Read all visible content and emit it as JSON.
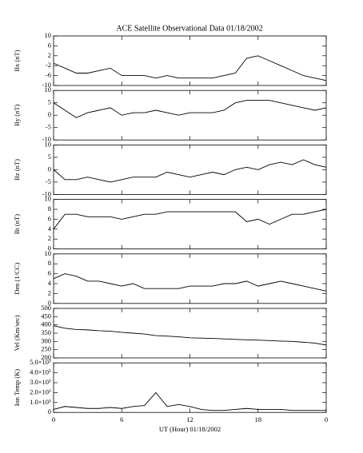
{
  "chart_data": [
    {
      "type": "line",
      "title": "ACE Satellite Observational Data   01/18/2002",
      "ylabel": "Bx (nT)",
      "x": [
        0,
        1,
        2,
        3,
        4,
        5,
        6,
        7,
        8,
        9,
        10,
        11,
        12,
        13,
        14,
        15,
        16,
        17,
        18,
        19,
        20,
        21,
        22,
        23,
        24
      ],
      "values": [
        -1,
        -3,
        -5,
        -5,
        -4,
        -3,
        -6,
        -6,
        -6,
        -7,
        -6,
        -7,
        -7,
        -7,
        -7,
        -6,
        -5,
        1,
        2,
        0,
        -2,
        -4,
        -6,
        -7,
        -8
      ],
      "ylim": [
        -10,
        10
      ],
      "yticks": [
        -10,
        -6,
        -2,
        2,
        6,
        10
      ],
      "color": "#000000"
    },
    {
      "type": "line",
      "ylabel": "By (nT)",
      "x": [
        0,
        1,
        2,
        3,
        4,
        5,
        6,
        7,
        8,
        9,
        10,
        11,
        12,
        13,
        14,
        15,
        16,
        17,
        18,
        19,
        20,
        21,
        22,
        23,
        24
      ],
      "values": [
        5,
        2,
        -1,
        1,
        2,
        3,
        0,
        1,
        1,
        2,
        1,
        0,
        1,
        1,
        1,
        2,
        5,
        6,
        6,
        6,
        5,
        4,
        3,
        2,
        3
      ],
      "ylim": [
        -10,
        10
      ],
      "yticks": [
        -10,
        -5,
        0,
        5,
        10
      ],
      "color": "#000000"
    },
    {
      "type": "line",
      "ylabel": "Bz (nT)",
      "x": [
        0,
        1,
        2,
        3,
        4,
        5,
        6,
        7,
        8,
        9,
        10,
        11,
        12,
        13,
        14,
        15,
        16,
        17,
        18,
        19,
        20,
        21,
        22,
        23,
        24
      ],
      "values": [
        0,
        -4,
        -4,
        -3,
        -4,
        -5,
        -4,
        -3,
        -3,
        -3,
        -1,
        -2,
        -3,
        -2,
        -1,
        -2,
        0,
        1,
        0,
        2,
        3,
        2,
        4,
        2,
        1
      ],
      "ylim": [
        -10,
        10
      ],
      "yticks": [
        -10,
        -5,
        0,
        5,
        10
      ],
      "color": "#000000"
    },
    {
      "type": "line",
      "ylabel": "Bt (nT)",
      "x": [
        0,
        1,
        2,
        3,
        4,
        5,
        6,
        7,
        8,
        9,
        10,
        11,
        12,
        13,
        14,
        15,
        16,
        17,
        18,
        19,
        20,
        21,
        22,
        23,
        24
      ],
      "values": [
        4,
        7,
        7,
        6.5,
        6.5,
        6.5,
        6,
        6.5,
        7,
        7,
        7.5,
        7.5,
        7.5,
        7.5,
        7.5,
        7.5,
        7.5,
        5.5,
        6,
        5,
        6,
        7,
        7,
        7.5,
        8
      ],
      "ylim": [
        0,
        10
      ],
      "yticks": [
        0,
        2,
        4,
        6,
        8,
        10
      ],
      "color": "#000000"
    },
    {
      "type": "line",
      "ylabel": "Den (1/CC)",
      "x": [
        0,
        1,
        2,
        3,
        4,
        5,
        6,
        7,
        8,
        9,
        10,
        11,
        12,
        13,
        14,
        15,
        16,
        17,
        18,
        19,
        20,
        21,
        22,
        23,
        24
      ],
      "values": [
        5,
        6,
        5.5,
        4.5,
        4.5,
        4,
        3.5,
        4,
        3,
        3,
        3,
        3,
        3.5,
        3.5,
        3.5,
        4,
        4,
        4.5,
        3.5,
        4,
        4.5,
        4,
        3.5,
        3,
        2.5
      ],
      "ylim": [
        0,
        10
      ],
      "yticks": [
        0,
        2,
        4,
        6,
        8,
        10
      ],
      "color": "#000000"
    },
    {
      "type": "line",
      "ylabel": "Vel (Km/sec)",
      "x": [
        0,
        1,
        2,
        3,
        4,
        5,
        6,
        7,
        8,
        9,
        10,
        11,
        12,
        13,
        14,
        15,
        16,
        17,
        18,
        19,
        20,
        21,
        22,
        23,
        24
      ],
      "values": [
        395,
        380,
        372,
        370,
        365,
        362,
        355,
        350,
        345,
        335,
        332,
        328,
        322,
        320,
        318,
        315,
        312,
        310,
        308,
        305,
        302,
        300,
        295,
        290,
        278
      ],
      "ylim": [
        200,
        500
      ],
      "yticks": [
        200,
        250,
        300,
        350,
        400,
        450,
        500
      ],
      "color": "#000000"
    },
    {
      "type": "line",
      "ylabel": "Ion Temp (K)",
      "xlabel": "UT (Hour)   01/18/2002",
      "x": [
        0,
        1,
        2,
        3,
        4,
        5,
        6,
        7,
        8,
        9,
        10,
        11,
        12,
        13,
        14,
        15,
        16,
        17,
        18,
        19,
        20,
        21,
        22,
        23,
        24
      ],
      "values": [
        30000,
        60000,
        50000,
        40000,
        40000,
        50000,
        40000,
        60000,
        70000,
        200000,
        60000,
        80000,
        60000,
        30000,
        20000,
        20000,
        30000,
        40000,
        30000,
        30000,
        30000,
        20000,
        20000,
        20000,
        20000
      ],
      "ylim": [
        0,
        500000
      ],
      "yticks": [
        0,
        {
          "value": 100000,
          "label": "1.0×10⁵"
        },
        {
          "value": 200000,
          "label": "2.0×10⁵"
        },
        {
          "value": 300000,
          "label": "3.0×10⁵"
        },
        {
          "value": 400000,
          "label": "4.0×10⁵"
        },
        {
          "value": 500000,
          "label": "5.0×10⁵"
        }
      ],
      "xlim": [
        0,
        24
      ],
      "xticks": [
        0,
        6,
        12,
        18,
        {
          "value": 24,
          "label": "0"
        }
      ],
      "color": "#000000"
    }
  ]
}
